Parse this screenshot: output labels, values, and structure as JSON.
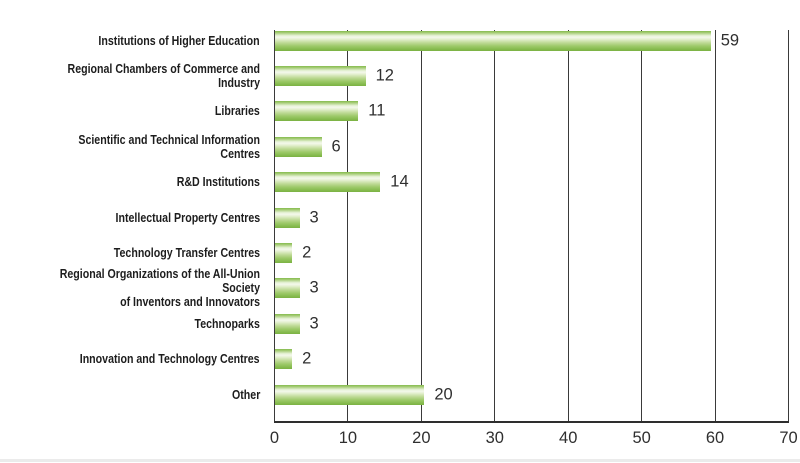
{
  "chart_data": {
    "type": "bar",
    "orientation": "horizontal",
    "title": "",
    "xlabel": "",
    "ylabel": "",
    "categories": [
      "Institutions of Higher Education",
      "Regional Chambers of Commerce and Industry",
      "Libraries",
      "Scientific and Technical Information Centres",
      "R&D Institutions",
      "Intellectual Property Centres",
      "Technology Transfer Centres",
      "Regional Organizations of the All-Union Society\nof Inventors and Innovators",
      "Technoparks",
      "Innovation and Technology Centres",
      "Other"
    ],
    "values": [
      59,
      12,
      11,
      6,
      14,
      3,
      2,
      3,
      3,
      2,
      20
    ],
    "xlim": [
      0,
      70
    ],
    "xticks": [
      0,
      10,
      20,
      30,
      40,
      50,
      60,
      70
    ],
    "grid": true,
    "legend_shown": false,
    "value_labels_shown": true,
    "colors": {
      "bar_top": "#85bb4e",
      "bar_highlight": "#f3f8ea",
      "bar_bottom": "#7cb143",
      "axis_line": "#3a3a3a",
      "text": "#2f2f2f"
    }
  }
}
